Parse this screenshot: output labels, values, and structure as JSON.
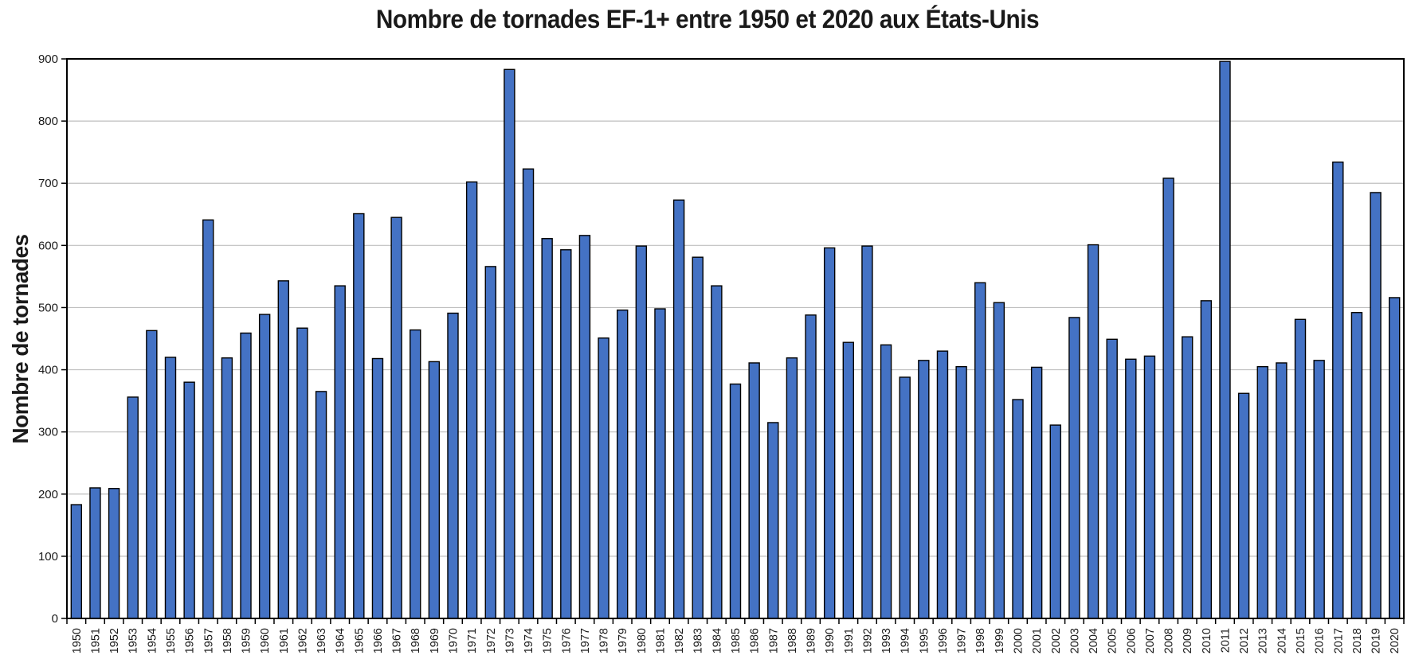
{
  "chart_data": {
    "type": "bar",
    "title": "Nombre de tornades EF-1+ entre 1950 et 2020 aux États-Unis",
    "ylabel": "Nombre de tornades",
    "xlabel": "",
    "ylim": [
      0,
      900
    ],
    "yticks": [
      0,
      100,
      200,
      300,
      400,
      500,
      600,
      700,
      800,
      900
    ],
    "grid": "horizontal-gray-lines",
    "legend": "none",
    "categories": [
      1950,
      1951,
      1952,
      1953,
      1954,
      1955,
      1956,
      1957,
      1958,
      1959,
      1960,
      1961,
      1962,
      1963,
      1964,
      1965,
      1966,
      1967,
      1968,
      1969,
      1970,
      1971,
      1972,
      1973,
      1974,
      1975,
      1976,
      1977,
      1978,
      1979,
      1980,
      1981,
      1982,
      1983,
      1984,
      1985,
      1986,
      1987,
      1988,
      1989,
      1990,
      1991,
      1992,
      1993,
      1994,
      1995,
      1996,
      1997,
      1998,
      1999,
      2000,
      2001,
      2002,
      2003,
      2004,
      2005,
      2006,
      2007,
      2008,
      2009,
      2010,
      2011,
      2012,
      2013,
      2014,
      2015,
      2016,
      2017,
      2018,
      2019,
      2020
    ],
    "values": [
      183,
      210,
      209,
      356,
      463,
      420,
      380,
      641,
      419,
      459,
      489,
      543,
      467,
      365,
      535,
      651,
      418,
      645,
      464,
      413,
      491,
      702,
      566,
      883,
      723,
      611,
      593,
      616,
      451,
      496,
      599,
      498,
      673,
      581,
      535,
      377,
      411,
      315,
      419,
      488,
      596,
      444,
      599,
      440,
      388,
      415,
      430,
      405,
      540,
      508,
      352,
      404,
      311,
      484,
      601,
      449,
      417,
      422,
      708,
      453,
      511,
      896,
      362,
      405,
      411,
      481,
      415,
      734,
      492,
      685,
      516
    ],
    "colors": {
      "bar_fill": "#4472C4",
      "bar_border": "#000000",
      "gridline": "#BFBFBF",
      "axis": "#000000",
      "text": "#1a1a1a"
    }
  }
}
